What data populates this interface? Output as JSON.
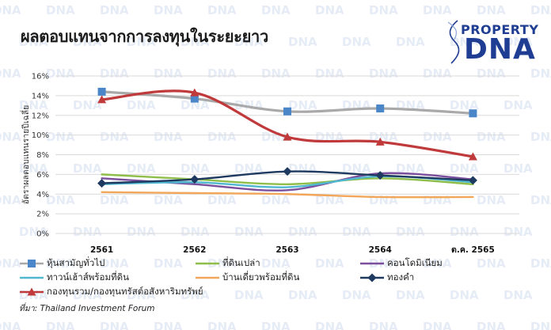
{
  "watermark_text": "DNA",
  "logo": {
    "top_text": "PROPERTY",
    "main_text": "DNA",
    "color": "#1f3d92"
  },
  "source_note": "ที่มา: Thailand Investment Forum",
  "chart_data": {
    "type": "line",
    "title": "ผลตอบแทนจากการลงทุนในระยะยาว",
    "ylabel": "อัตราผลตอบแทนรายปีเฉลี่ย",
    "xlabel": "",
    "categories": [
      "2561",
      "2562",
      "2563",
      "2564",
      "ต.ค. 2565"
    ],
    "ylim": [
      0,
      16
    ],
    "yticks": [
      0,
      2,
      4,
      6,
      8,
      10,
      12,
      14,
      16
    ],
    "ytick_labels": [
      "0%",
      "2%",
      "4%",
      "6%",
      "8%",
      "10%",
      "12%",
      "14%",
      "16%"
    ],
    "grid": true,
    "legend_position": "bottom",
    "series": [
      {
        "name": "หุ้นสามัญทั่วไป",
        "values": [
          14.4,
          13.7,
          12.4,
          12.7,
          12.2
        ],
        "color": "#a9a9a9",
        "marker": "square",
        "marker_color": "#4a86c8"
      },
      {
        "name": "ที่ดินเปล่า",
        "values": [
          6.0,
          5.5,
          5.0,
          5.6,
          5.0
        ],
        "color": "#8fbe4a",
        "marker": "none"
      },
      {
        "name": "คอนโดมิเนียม",
        "values": [
          5.6,
          5.0,
          4.4,
          6.1,
          5.5
        ],
        "color": "#7b4f9d",
        "marker": "none"
      },
      {
        "name": "ทาวน์เฮ้าส์พร้อมที่ดิน",
        "values": [
          5.0,
          5.2,
          4.7,
          5.8,
          5.2
        ],
        "color": "#4fb8d0",
        "marker": "none"
      },
      {
        "name": "บ้านเดี่ยวพร้อมที่ดิน",
        "values": [
          4.2,
          4.1,
          4.0,
          3.7,
          3.7
        ],
        "color": "#f2a65a",
        "marker": "none"
      },
      {
        "name": "ทองคำ",
        "values": [
          5.1,
          5.5,
          6.3,
          5.9,
          5.4
        ],
        "color": "#1f3a60",
        "marker": "diamond",
        "marker_color": "#1f3a60"
      },
      {
        "name": "กองทุนรวม/กองทุนทรัสต์อสังหาริมทรัพย์",
        "values": [
          13.6,
          14.3,
          9.8,
          9.3,
          7.8
        ],
        "color": "#c0393b",
        "marker": "triangle",
        "marker_color": "#c0393b"
      }
    ]
  }
}
